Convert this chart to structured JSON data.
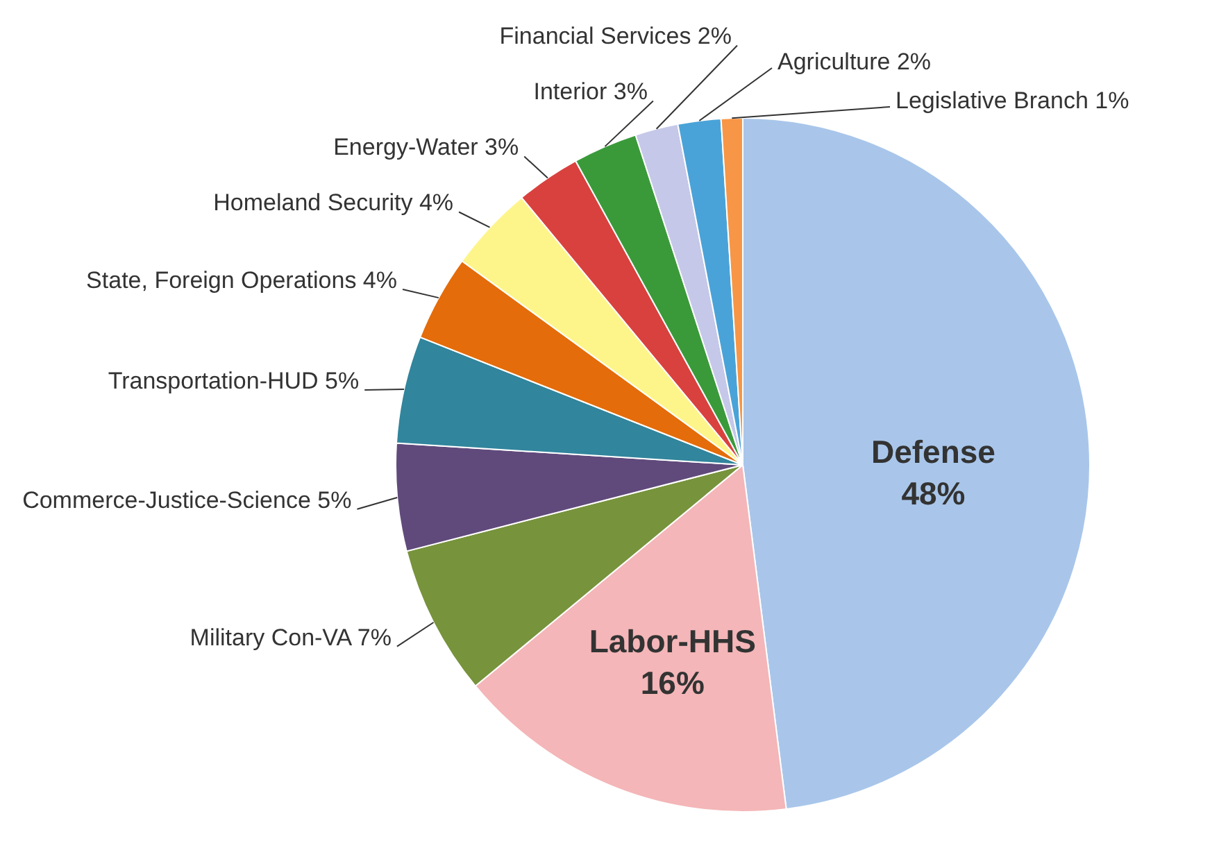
{
  "chart_data": {
    "type": "pie",
    "categories": [
      "Defense",
      "Labor-HHS",
      "Military Con-VA",
      "Commerce-Justice-Science",
      "Transportation-HUD",
      "State, Foreign Operations",
      "Homeland Security",
      "Energy-Water",
      "Interior",
      "Financial Services",
      "Agriculture",
      "Legislative Branch"
    ],
    "values": [
      48,
      16,
      7,
      5,
      5,
      4,
      4,
      3,
      3,
      2,
      2,
      1
    ],
    "value_labels": [
      "48%",
      "16%",
      "7%",
      "5%",
      "5%",
      "4%",
      "4%",
      "3%",
      "3%",
      "2%",
      "2%",
      "1%"
    ],
    "colors": [
      "#a9c6ea",
      "#f4b6b8",
      "#77933c",
      "#604a7b",
      "#31859c",
      "#e46c0a",
      "#fdf58a",
      "#d9413e",
      "#3a9a3a",
      "#c5c8e8",
      "#4aa3d8",
      "#f79646"
    ]
  }
}
